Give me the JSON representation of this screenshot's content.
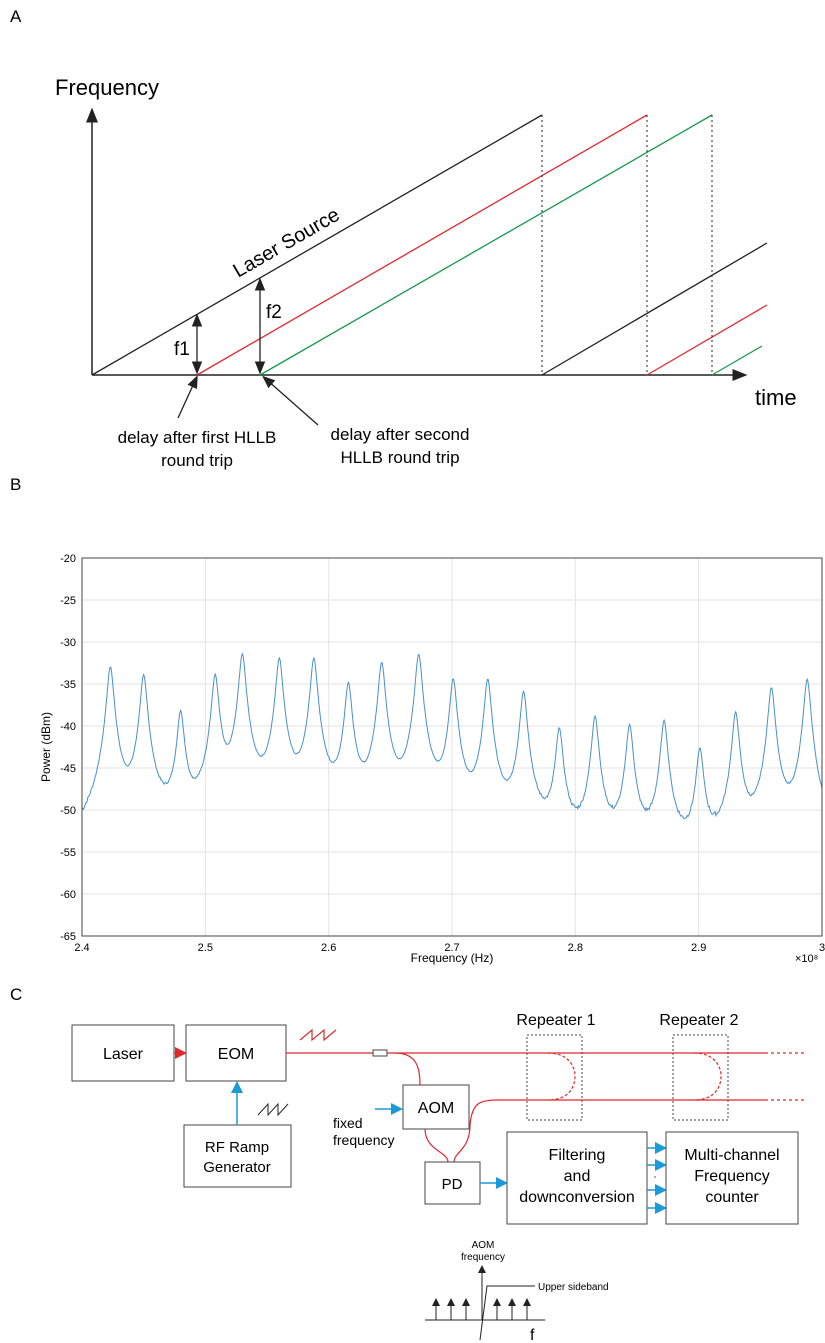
{
  "panels": {
    "a": "A",
    "b": "B",
    "c": "C"
  },
  "panel_a": {
    "y_axis_label": "Frequency",
    "x_axis_label": "time",
    "source_label": "Laser Source",
    "f1": "f1",
    "f2": "f2",
    "delay_first_line1": "delay after first HLLB",
    "delay_first_line2": "round trip",
    "delay_second_line1": "delay after second",
    "delay_second_line2": "HLLB round trip",
    "colors": {
      "source": "#222222",
      "first": "#e0282e",
      "second": "#139a4c"
    }
  },
  "panel_c": {
    "laser": "Laser",
    "eom": "EOM",
    "rf_ramp_line1": "RF Ramp",
    "rf_ramp_line2": "Generator",
    "aom": "AOM",
    "fixed_line1": "fixed",
    "fixed_line2": "frequency",
    "pd": "PD",
    "filter_line1": "Filtering",
    "filter_line2": "and",
    "filter_line3": "downconversion",
    "counter_line1": "Multi-channel",
    "counter_line2": "Frequency",
    "counter_line3": "counter",
    "repeater1": "Repeater 1",
    "repeater2": "Repeater 2",
    "aom_freq_line1": "AOM",
    "aom_freq_line2": "frequency",
    "upper_sideband": "Upper sideband",
    "f_axis": "f",
    "colors": {
      "fiber": "#e0282e",
      "signal": "#1a9ad6"
    }
  },
  "chart_data": {
    "type": "line",
    "title": "",
    "xlabel": "Frequency (Hz)",
    "ylabel": "Power (dBm)",
    "x_exponent": "×10⁸",
    "xlim": [
      240000000,
      300000000
    ],
    "ylim": [
      -65,
      -20
    ],
    "x_ticks": [
      2.4,
      2.5,
      2.6,
      2.7,
      2.8,
      2.9,
      3
    ],
    "x_tick_labels": [
      "2.4",
      "2.5",
      "2.6",
      "2.7",
      "2.8",
      "2.9",
      "3"
    ],
    "y_ticks": [
      -20,
      -25,
      -30,
      -35,
      -40,
      -45,
      -50,
      -55,
      -60,
      -65
    ],
    "y_tick_labels": [
      "-20",
      "-25",
      "-30",
      "-35",
      "-40",
      "-45",
      "-50",
      "-55",
      "-60",
      "-65"
    ],
    "grid": true,
    "line_color": "#4a90c9",
    "baseline_dbm": -57,
    "peaks": [
      {
        "x": 242300000,
        "y": -33
      },
      {
        "x": 245000000,
        "y": -34
      },
      {
        "x": 248000000,
        "y": -38.5
      },
      {
        "x": 250800000,
        "y": -34
      },
      {
        "x": 253000000,
        "y": -31.5
      },
      {
        "x": 256000000,
        "y": -32
      },
      {
        "x": 258800000,
        "y": -32
      },
      {
        "x": 261600000,
        "y": -35
      },
      {
        "x": 264300000,
        "y": -32.5
      },
      {
        "x": 267300000,
        "y": -31.5
      },
      {
        "x": 270100000,
        "y": -34.5
      },
      {
        "x": 272900000,
        "y": -34.5
      },
      {
        "x": 275800000,
        "y": -36
      },
      {
        "x": 278700000,
        "y": -40.5
      },
      {
        "x": 281600000,
        "y": -39
      },
      {
        "x": 284400000,
        "y": -40
      },
      {
        "x": 287200000,
        "y": -39.5
      },
      {
        "x": 290100000,
        "y": -43
      },
      {
        "x": 293000000,
        "y": -38.5
      },
      {
        "x": 295900000,
        "y": -35.5
      },
      {
        "x": 298800000,
        "y": -34.5
      }
    ]
  }
}
